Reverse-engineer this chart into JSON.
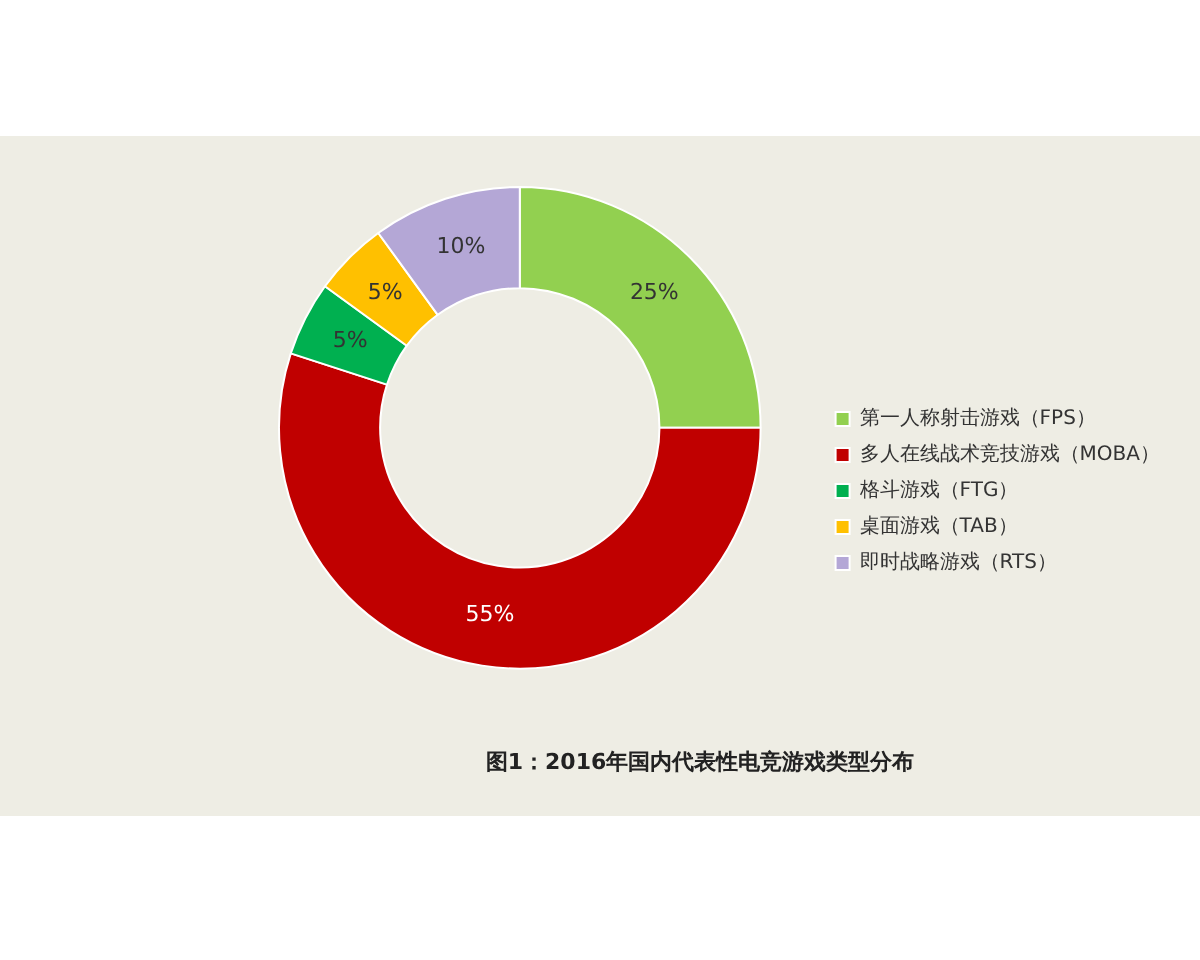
{
  "chart_data": {
    "type": "donut",
    "title": "图1：2016年国内代表性电竞游戏类型分布",
    "categories": [
      "第一人称射击游戏（FPS）",
      "多人在线战术竞技游戏（MOBA）",
      "格斗游戏（FTG）",
      "桌面游戏（TAB）",
      "即时战略游戏（RTS）"
    ],
    "values": [
      25,
      55,
      5,
      5,
      10
    ],
    "colors": [
      "#92d050",
      "#c00000",
      "#00b050",
      "#ffc000",
      "#b4a7d6"
    ],
    "value_labels": [
      "25%",
      "55%",
      "5%",
      "5%",
      "10%"
    ],
    "legend": "right"
  }
}
